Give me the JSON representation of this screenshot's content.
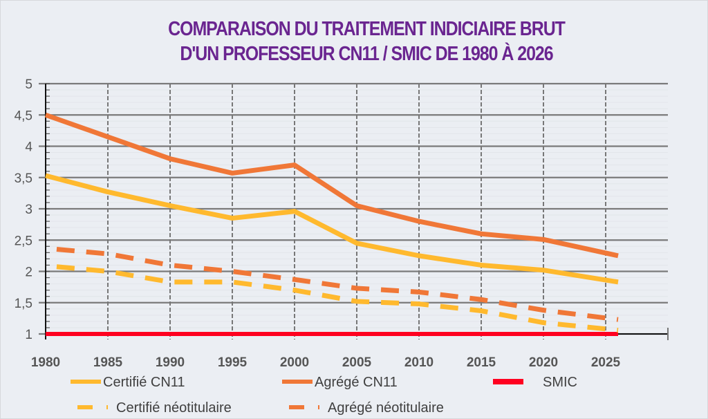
{
  "chart_data": {
    "type": "line",
    "title": "COMPARAISON DU TRAITEMENT INDICIAIRE BRUT D'UN PROFESSEUR CN11 / SMIC DE 1980 À 2026",
    "title_lines": [
      "COMPARAISON DU TRAITEMENT INDICIAIRE BRUT",
      "D'UN PROFESSEUR CN11 / SMIC DE 1980 À 2026"
    ],
    "xlabel": "",
    "ylabel": "",
    "x": [
      1980,
      1985,
      1990,
      1995,
      2000,
      2005,
      2010,
      2015,
      2020,
      2026
    ],
    "xlim": [
      1980,
      2030
    ],
    "ylim": [
      1,
      5
    ],
    "x_ticks": [
      1980,
      1985,
      1990,
      1995,
      2000,
      2005,
      2010,
      2015,
      2020,
      2025
    ],
    "x_tick_labels": [
      "1980",
      "1985",
      "1990",
      "1995",
      "2000",
      "2005",
      "2010",
      "2015",
      "2020",
      "2025"
    ],
    "y_ticks": [
      1,
      1.5,
      2,
      2.5,
      3,
      3.5,
      4,
      4.5,
      5
    ],
    "y_tick_labels": [
      "1",
      "1,5",
      "2",
      "2,5",
      "3",
      "3,5",
      "4",
      "4,5",
      "5"
    ],
    "grid": true,
    "legend_position": "bottom",
    "series": [
      {
        "name": "Certifié CN11",
        "color": "#ffb92e",
        "style": "solid",
        "values": [
          3.53,
          3.27,
          3.05,
          2.85,
          2.96,
          2.45,
          2.25,
          2.1,
          2.02,
          1.83
        ]
      },
      {
        "name": "Agrégé CN11",
        "color": "#f07737",
        "style": "solid",
        "values": [
          4.5,
          4.15,
          3.8,
          3.57,
          3.7,
          3.05,
          2.8,
          2.6,
          2.51,
          2.25
        ]
      },
      {
        "name": "SMIC",
        "color": "#ff0020",
        "style": "solid",
        "values": [
          1,
          1,
          1,
          1,
          1,
          1,
          1,
          1,
          1,
          1
        ]
      },
      {
        "name": "Certifié néotitulaire",
        "color": "#ffb92e",
        "style": "dashed",
        "values": [
          2.09,
          2.0,
          1.83,
          1.83,
          1.7,
          1.52,
          1.48,
          1.37,
          1.18,
          1.06
        ]
      },
      {
        "name": "Agrégé néotitulaire",
        "color": "#f07737",
        "style": "dashed",
        "values": [
          2.37,
          2.28,
          2.1,
          2.0,
          1.87,
          1.73,
          1.67,
          1.55,
          1.38,
          1.23
        ]
      }
    ]
  }
}
